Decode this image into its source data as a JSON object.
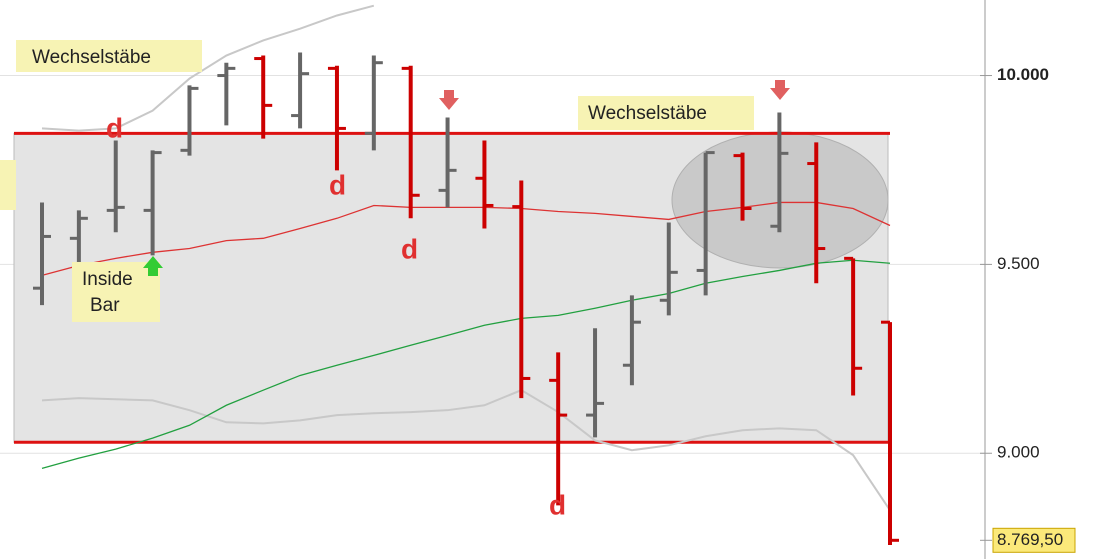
{
  "chart_data": {
    "type": "ohlc",
    "up_color": "#666666",
    "down_color": "#cc0000",
    "ylim": [
      8720,
      10200
    ],
    "yticks": [
      {
        "value": 10000,
        "label": "10.000"
      },
      {
        "value": 9500,
        "label": "9.500"
      },
      {
        "value": 9000,
        "label": "9.000"
      }
    ],
    "grid": true,
    "last_price": {
      "value": 8769.5,
      "label": "8.769,50"
    },
    "levels": [
      9847,
      9029
    ],
    "bars": [
      {
        "open": 9437,
        "high": 9664,
        "low": 9392,
        "close": 9574
      },
      {
        "open": 9569,
        "high": 9643,
        "low": 9405,
        "close": 9622
      },
      {
        "open": 9643,
        "high": 9828,
        "low": 9585,
        "close": 9651
      },
      {
        "open": 9643,
        "high": 9802,
        "low": 9524,
        "close": 9796
      },
      {
        "open": 9802,
        "high": 9974,
        "low": 9788,
        "close": 9966
      },
      {
        "open": 10000,
        "high": 10034,
        "low": 9868,
        "close": 10019
      },
      {
        "open": 10045,
        "high": 10053,
        "low": 9833,
        "close": 9921
      },
      {
        "open": 9894,
        "high": 10061,
        "low": 9860,
        "close": 10005
      },
      {
        "open": 10019,
        "high": 10026,
        "low": 9749,
        "close": 9860
      },
      {
        "open": 9847,
        "high": 10053,
        "low": 9802,
        "close": 10034
      },
      {
        "open": 10019,
        "high": 10026,
        "low": 9622,
        "close": 9683
      },
      {
        "open": 9696,
        "high": 9889,
        "low": 9651,
        "close": 9749
      },
      {
        "open": 9728,
        "high": 9828,
        "low": 9595,
        "close": 9656
      },
      {
        "open": 9653,
        "high": 9722,
        "low": 9146,
        "close": 9198
      },
      {
        "open": 9193,
        "high": 9267,
        "low": 8862,
        "close": 9101
      },
      {
        "open": 9101,
        "high": 9331,
        "low": 9042,
        "close": 9132
      },
      {
        "open": 9233,
        "high": 9418,
        "low": 9180,
        "close": 9347
      },
      {
        "open": 9405,
        "high": 9611,
        "low": 9365,
        "close": 9479
      },
      {
        "open": 9484,
        "high": 9796,
        "low": 9418,
        "close": 9796
      },
      {
        "open": 9788,
        "high": 9796,
        "low": 9616,
        "close": 9648
      },
      {
        "open": 9601,
        "high": 9902,
        "low": 9585,
        "close": 9794
      },
      {
        "open": 9767,
        "high": 9823,
        "low": 9450,
        "close": 9542
      },
      {
        "open": 9516,
        "high": 9516,
        "low": 9153,
        "close": 9225
      },
      {
        "open": 9347,
        "high": 9347,
        "low": 8757,
        "close": 8769.5
      }
    ],
    "series": [
      {
        "color": "#c8c8c8",
        "values": [
          9860,
          9854,
          9860,
          9907,
          9992,
          10053,
          10093,
          10124,
          10159,
          10185,
          null,
          null,
          null,
          null,
          null,
          null,
          null,
          null,
          null,
          null,
          null,
          null,
          null,
          null
        ]
      },
      {
        "color": "#c8c8c8",
        "values": [
          9140,
          9146,
          9143,
          9140,
          9114,
          9082,
          9079,
          9087,
          9101,
          9106,
          9109,
          9114,
          9127,
          9167,
          9109,
          9034,
          9008,
          9021,
          9045,
          9061,
          9066,
          9061,
          8995,
          8849
        ]
      },
      {
        "color": "#dd3333",
        "values": [
          9471,
          9497,
          9516,
          9532,
          9542,
          9563,
          9569,
          9595,
          9622,
          9656,
          9651,
          9651,
          9651,
          9648,
          9640,
          9635,
          9627,
          9619,
          9640,
          9651,
          9664,
          9664,
          9648,
          9603
        ]
      },
      {
        "color": "#22a040",
        "values": [
          8960,
          8987,
          9011,
          9040,
          9074,
          9127,
          9167,
          9206,
          9233,
          9259,
          9286,
          9312,
          9339,
          9357,
          9365,
          9384,
          9405,
          9423,
          9450,
          9468,
          9484,
          9503,
          9511,
          9503
        ]
      }
    ],
    "annotations": [
      "Wechselstäbe",
      "Wechselstäbe",
      "Inside",
      "Bar",
      "d",
      "d",
      "d",
      "d"
    ]
  }
}
